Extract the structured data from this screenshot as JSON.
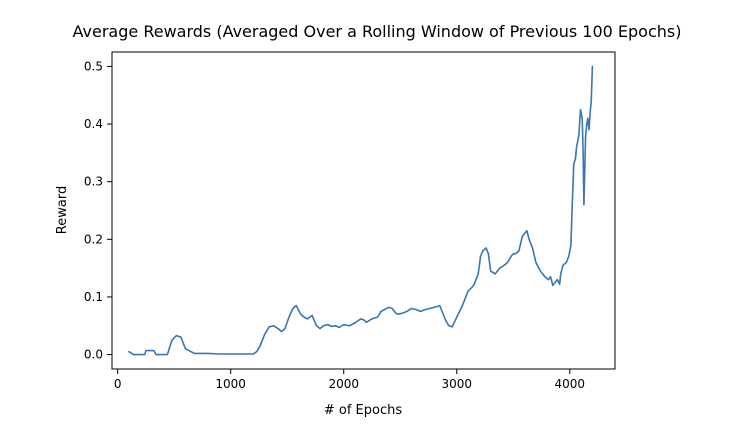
{
  "chart_data": {
    "type": "line",
    "title": "Average Rewards (Averaged Over a Rolling Window of Previous 100 Epochs)",
    "xlabel": "# of Epochs",
    "ylabel": "Reward",
    "xlim": [
      -50,
      4400
    ],
    "ylim": [
      -0.025,
      0.525
    ],
    "xticks": [
      0,
      1000,
      2000,
      3000,
      4000
    ],
    "xtick_labels": [
      "0",
      "1000",
      "2000",
      "3000",
      "4000"
    ],
    "yticks": [
      0.0,
      0.1,
      0.2,
      0.3,
      0.4,
      0.5
    ],
    "ytick_labels": [
      "0.0",
      "0.1",
      "0.2",
      "0.3",
      "0.4",
      "0.5"
    ],
    "grid": false,
    "line_color": "#3a76af",
    "series": [
      {
        "x": [
          100,
          140,
          180,
          240,
          250,
          320,
          340,
          440,
          480,
          520,
          560,
          600,
          680,
          800,
          900,
          1000,
          1100,
          1200,
          1230,
          1260,
          1300,
          1340,
          1380,
          1420,
          1450,
          1480,
          1510,
          1550,
          1580,
          1620,
          1650,
          1680,
          1720,
          1760,
          1790,
          1820,
          1860,
          1890,
          1930,
          1960,
          2000,
          2050,
          2100,
          2150,
          2180,
          2200,
          2250,
          2300,
          2330,
          2360,
          2400,
          2430,
          2460,
          2480,
          2520,
          2560,
          2600,
          2640,
          2680,
          2720,
          2760,
          2800,
          2850,
          2870,
          2900,
          2930,
          2960,
          3000,
          3050,
          3100,
          3150,
          3190,
          3210,
          3230,
          3260,
          3280,
          3300,
          3340,
          3380,
          3420,
          3450,
          3480,
          3500,
          3520,
          3550,
          3580,
          3600,
          3620,
          3640,
          3670,
          3700,
          3740,
          3780,
          3810,
          3830,
          3850,
          3870,
          3890,
          3910,
          3920,
          3940,
          3970,
          3990,
          4010,
          4020,
          4035,
          4050,
          4060,
          4080,
          4095,
          4110,
          4118,
          4125,
          4130,
          4140,
          4150,
          4160,
          4170,
          4180,
          4190,
          4200
        ],
        "y": [
          0.005,
          0.0,
          0.0,
          0.0,
          0.007,
          0.007,
          0.0,
          0.0,
          0.025,
          0.033,
          0.03,
          0.01,
          0.002,
          0.002,
          0.001,
          0.001,
          0.001,
          0.001,
          0.005,
          0.015,
          0.035,
          0.048,
          0.05,
          0.045,
          0.04,
          0.045,
          0.062,
          0.08,
          0.085,
          0.07,
          0.065,
          0.062,
          0.068,
          0.05,
          0.045,
          0.05,
          0.052,
          0.049,
          0.05,
          0.047,
          0.052,
          0.05,
          0.055,
          0.062,
          0.06,
          0.056,
          0.062,
          0.065,
          0.075,
          0.078,
          0.082,
          0.08,
          0.072,
          0.07,
          0.072,
          0.075,
          0.08,
          0.078,
          0.075,
          0.078,
          0.08,
          0.082,
          0.085,
          0.075,
          0.06,
          0.05,
          0.048,
          0.065,
          0.085,
          0.11,
          0.12,
          0.14,
          0.17,
          0.18,
          0.185,
          0.175,
          0.145,
          0.14,
          0.15,
          0.155,
          0.16,
          0.17,
          0.175,
          0.175,
          0.18,
          0.205,
          0.21,
          0.215,
          0.2,
          0.185,
          0.16,
          0.145,
          0.135,
          0.13,
          0.135,
          0.12,
          0.125,
          0.13,
          0.122,
          0.14,
          0.155,
          0.16,
          0.17,
          0.19,
          0.25,
          0.33,
          0.34,
          0.36,
          0.38,
          0.425,
          0.41,
          0.35,
          0.26,
          0.3,
          0.38,
          0.4,
          0.41,
          0.39,
          0.42,
          0.44,
          0.5
        ]
      }
    ]
  }
}
